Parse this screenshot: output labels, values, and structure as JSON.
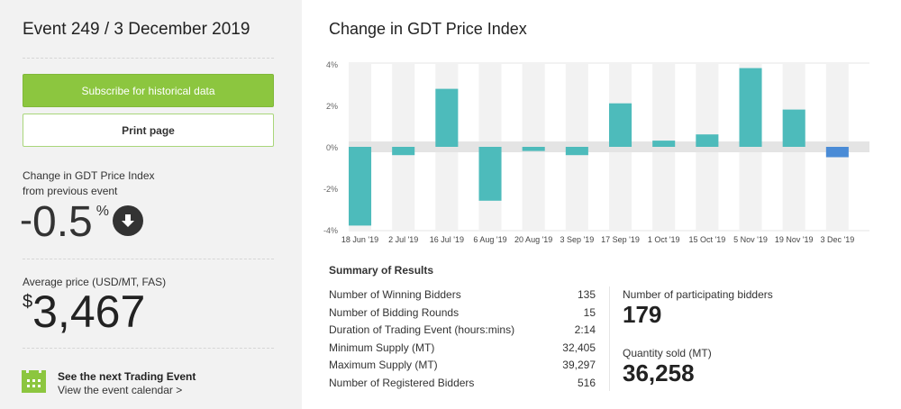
{
  "sidebar": {
    "event_title": "Event 249 / 3 December 2019",
    "subscribe_label": "Subscribe for historical data",
    "print_label": "Print page",
    "change_label_line1": "Change in GDT Price Index",
    "change_label_line2": "from previous event",
    "change_sign": "-",
    "change_value": "0.5",
    "change_unit": "%",
    "change_direction_icon": "arrow-down-circle-icon",
    "avg_price_label": "Average price (USD/MT, FAS)",
    "avg_price_currency": "$",
    "avg_price_value": "3,467",
    "next_event_title": "See the next Trading Event",
    "next_event_link": "View the event calendar >",
    "calendar_icon": "calendar-icon"
  },
  "colors": {
    "accent_green": "#8cc63f",
    "bar_teal": "#4dbbbb",
    "bar_current": "#4a8bd6",
    "dark_text": "#222222"
  },
  "chart_data": {
    "type": "bar",
    "title": "Change in GDT Price Index",
    "xlabel": "",
    "ylabel": "",
    "ylim": [
      -4,
      4
    ],
    "yticks": [
      4,
      2,
      0,
      -2,
      -4
    ],
    "ytick_labels": [
      "4%",
      "2%",
      "0%",
      "-2%",
      "-4%"
    ],
    "categories": [
      "18 Jun '19",
      "2 Jul '19",
      "16 Jul '19",
      "6 Aug '19",
      "20 Aug '19",
      "3 Sep '19",
      "17 Sep '19",
      "1 Oct '19",
      "15 Oct '19",
      "5 Nov '19",
      "19 Nov '19",
      "3 Dec '19"
    ],
    "values": [
      -3.8,
      -0.4,
      2.8,
      -2.6,
      -0.2,
      -0.4,
      2.1,
      0.3,
      0.6,
      3.8,
      1.8,
      -0.5
    ],
    "highlight_index": 11,
    "grid": false
  },
  "summary": {
    "title": "Summary of Results",
    "rows": [
      {
        "label": "Number of Winning Bidders",
        "value": "135"
      },
      {
        "label": "Number of Bidding Rounds",
        "value": "15"
      },
      {
        "label": "Duration of Trading Event (hours:mins)",
        "value": "2:14"
      },
      {
        "label": "Minimum Supply (MT)",
        "value": "32,405"
      },
      {
        "label": "Maximum Supply (MT)",
        "value": "39,297"
      },
      {
        "label": "Number of Registered Bidders",
        "value": "516"
      }
    ],
    "participating_label": "Number of participating bidders",
    "participating_value": "179",
    "quantity_label": "Quantity sold (MT)",
    "quantity_value": "36,258"
  }
}
